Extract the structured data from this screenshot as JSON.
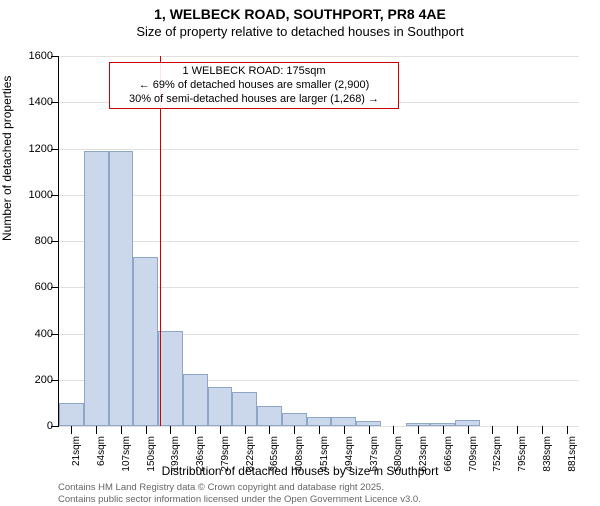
{
  "header": {
    "title": "1, WELBECK ROAD, SOUTHPORT, PR8 4AE",
    "subtitle": "Size of property relative to detached houses in Southport"
  },
  "chart": {
    "type": "histogram",
    "background_color": "#ffffff",
    "grid_color": "#e0e0e0",
    "bar_fill": "#cbd8ec",
    "bar_border": "#8ea6c8",
    "accent_color": "#cc0000",
    "ylim": [
      0,
      1600
    ],
    "ytick_step": 200,
    "yticks": [
      0,
      200,
      400,
      600,
      800,
      1000,
      1200,
      1400,
      1600
    ],
    "ylabel": "Number of detached properties",
    "xlabel": "Distribution of detached houses by size in Southport",
    "x_categories": [
      "21sqm",
      "64sqm",
      "107sqm",
      "150sqm",
      "193sqm",
      "236sqm",
      "279sqm",
      "322sqm",
      "365sqm",
      "408sqm",
      "451sqm",
      "494sqm",
      "537sqm",
      "580sqm",
      "623sqm",
      "666sqm",
      "709sqm",
      "752sqm",
      "795sqm",
      "838sqm",
      "881sqm"
    ],
    "values": [
      100,
      1190,
      1190,
      730,
      410,
      225,
      170,
      145,
      85,
      55,
      40,
      40,
      22,
      0,
      14,
      12,
      28,
      0,
      0,
      0,
      0
    ],
    "bar_width_ratio": 1.0,
    "marker_value": 175,
    "annotation": {
      "line1": "1 WELBECK ROAD: 175sqm",
      "line2": "← 69% of detached houses are smaller (2,900)",
      "line3": "30% of semi-detached houses are larger (1,268) →"
    },
    "title_fontsize": 14,
    "label_fontsize": 12,
    "tick_fontsize": 11
  },
  "footer": {
    "line1": "Contains HM Land Registry data © Crown copyright and database right 2025.",
    "line2": "Contains public sector information licensed under the Open Government Licence v3.0."
  }
}
